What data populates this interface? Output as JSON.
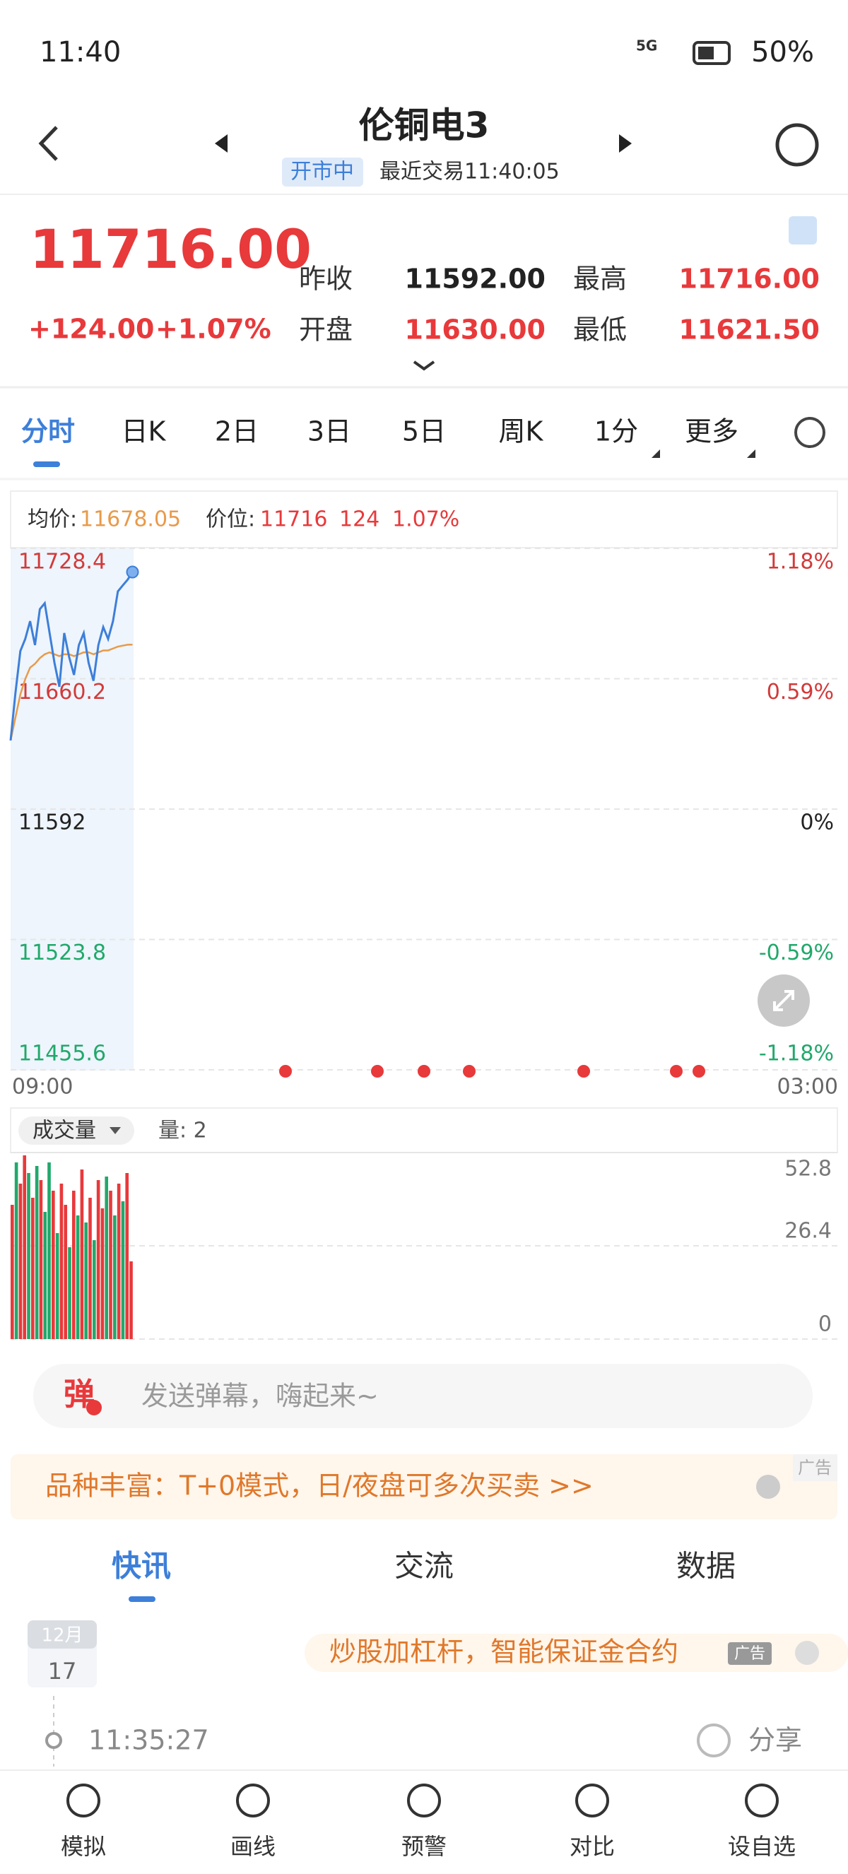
{
  "status_bar": {
    "time": "11:40",
    "network": "5G",
    "battery": "50%"
  },
  "header": {
    "title": "伦铜电3",
    "status": "开市中",
    "last_trade": "最近交易11:40:05"
  },
  "quote": {
    "price": "11716.00",
    "change": "+124.00",
    "change_pct": "+1.07%",
    "fields": [
      {
        "label": "昨收",
        "value": "11592.00",
        "color": "#222222"
      },
      {
        "label": "最高",
        "value": "11716.00",
        "color": "#e8393b"
      },
      {
        "label": "开盘",
        "value": "11630.00",
        "color": "#e8393b"
      },
      {
        "label": "最低",
        "value": "11621.50",
        "color": "#e8393b"
      }
    ]
  },
  "tabs": [
    "分时",
    "日K",
    "2日",
    "3日",
    "5日",
    "周K",
    "1分",
    "更多"
  ],
  "chart_data": [
    {
      "type": "line",
      "avg_label": "均价:",
      "avg": "11678.05",
      "price_label": "价位:",
      "price": "11716",
      "change": "124",
      "change_pct": "1.07%",
      "x_labels": [
        "09:00",
        "03:00"
      ],
      "ylim": [
        11455.6,
        11728.4
      ],
      "yticks": [
        11728.4,
        11660.2,
        11592,
        11523.8,
        11455.6
      ],
      "y2lim": [
        -1.18,
        1.18
      ],
      "y2ticks": [
        {
          "value": 1.18,
          "label": "1.18%"
        },
        {
          "value": 0.59,
          "label": "0.59%"
        },
        {
          "value": 0,
          "label": "0%"
        },
        {
          "value": -0.59,
          "label": "-0.59%"
        },
        {
          "value": -1.18,
          "label": "-1.18%"
        }
      ],
      "grid": true,
      "series": [
        {
          "name": "价位",
          "color": "#3d7fd9",
          "values": [
            11627.9,
            11652.9,
            11674.7,
            11681.0,
            11690.3,
            11677.8,
            11696.6,
            11699.7,
            11684.1,
            11668.5,
            11656.0,
            11684.1,
            11671.6,
            11662.2,
            11677.8,
            11684.1,
            11668.5,
            11659.1,
            11677.8,
            11687.2,
            11681.0,
            11690.3,
            11705.9,
            11709.0,
            11712.0,
            11716.0
          ]
        },
        {
          "name": "均价",
          "color": "#e89a4a",
          "values": [
            11627.9,
            11640.0,
            11652.0,
            11660.0,
            11666.0,
            11668.0,
            11671.0,
            11673.0,
            11674.0,
            11673.0,
            11672.0,
            11673.0,
            11673.0,
            11672.0,
            11673.0,
            11674.0,
            11674.0,
            11673.0,
            11674.0,
            11675.0,
            11675.0,
            11676.0,
            11677.0,
            11677.5,
            11678.0,
            11678.05
          ]
        }
      ]
    },
    {
      "type": "bar",
      "label": "成交量",
      "qty": "量: 2",
      "ylim": [
        0,
        52.8
      ],
      "yticks": [
        52.8,
        26.4,
        0
      ],
      "grid": true,
      "values": [
        38,
        50,
        44,
        52,
        47,
        40,
        49,
        45,
        36,
        50,
        42,
        30,
        44,
        38,
        26,
        42,
        35,
        48,
        33,
        40,
        28,
        45,
        37,
        46,
        42,
        35,
        44,
        39,
        47,
        22
      ],
      "bar_colors": [
        "#e8393b",
        "#21a86b",
        "#e8393b",
        "#e8393b",
        "#21a86b",
        "#e8393b",
        "#21a86b",
        "#e8393b",
        "#21a86b",
        "#21a86b",
        "#e8393b",
        "#21a86b",
        "#e8393b",
        "#e8393b",
        "#21a86b",
        "#e8393b",
        "#21a86b",
        "#e8393b",
        "#21a86b",
        "#e8393b",
        "#21a86b",
        "#e8393b",
        "#e8393b",
        "#21a86b",
        "#e8393b",
        "#21a86b",
        "#e8393b",
        "#21a86b",
        "#e8393b",
        "#e8393b"
      ]
    }
  ],
  "danmu": {
    "icon": "弹",
    "placeholder": "发送弹幕，嗨起来~"
  },
  "ad": {
    "text": "品种丰富：T+0模式，日/夜盘可多次买卖 >>",
    "tag": "广告"
  },
  "news_tabs": [
    "快讯",
    "交流",
    "数据"
  ],
  "news": {
    "month": "12月",
    "day": "17",
    "ad_text": "炒股加杠杆，智能保证金合约",
    "ad_tag": "广告",
    "time": "11:35:27",
    "share": "分享"
  },
  "nav": [
    "模拟",
    "画线",
    "预警",
    "对比",
    "设自选"
  ]
}
